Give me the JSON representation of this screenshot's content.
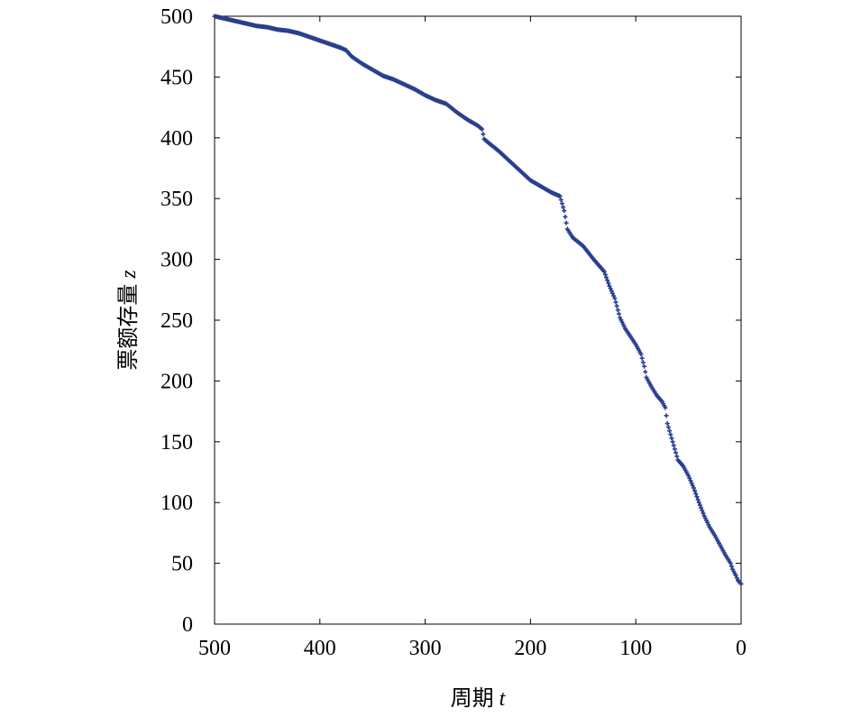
{
  "chart_data": {
    "type": "scatter",
    "title": "",
    "xlabel": "周期",
    "xlabel_var": "t",
    "ylabel": "票额存量",
    "ylabel_var": "z",
    "xlim": [
      500,
      0
    ],
    "ylim": [
      0,
      500
    ],
    "x_reversed": true,
    "xticks": [
      500,
      400,
      300,
      200,
      100,
      0
    ],
    "yticks": [
      0,
      50,
      100,
      150,
      200,
      250,
      300,
      350,
      400,
      450,
      500
    ],
    "grid": false,
    "marker_color": "#2b3f8f",
    "series": [
      {
        "x": [
          500,
          490,
          480,
          470,
          460,
          450,
          440,
          430,
          420,
          410,
          400,
          390,
          380,
          375,
          370,
          360,
          350,
          340,
          330,
          320,
          310,
          300,
          290,
          280,
          270,
          260,
          250,
          246,
          244,
          240,
          230,
          220,
          210,
          200,
          190,
          180,
          172,
          168,
          165,
          160,
          150,
          140,
          130,
          125,
          120,
          115,
          110,
          100,
          95,
          92,
          90,
          85,
          80,
          75,
          72,
          70,
          65,
          60,
          55,
          50,
          45,
          40,
          35,
          30,
          25,
          20,
          15,
          10,
          8,
          5,
          3,
          0
        ],
        "y": [
          500,
          498,
          496,
          494,
          492,
          491,
          489,
          488,
          486,
          483,
          480,
          477,
          474,
          472,
          467,
          461,
          456,
          451,
          448,
          444,
          440,
          435,
          431,
          428,
          421,
          415,
          410,
          407,
          399,
          396,
          389,
          381,
          373,
          365,
          360,
          355,
          352,
          340,
          325,
          318,
          311,
          300,
          290,
          278,
          268,
          252,
          243,
          230,
          222,
          212,
          203,
          195,
          188,
          183,
          178,
          165,
          150,
          135,
          130,
          122,
          112,
          100,
          89,
          80,
          73,
          65,
          57,
          50,
          45,
          40,
          36,
          33
        ]
      }
    ]
  }
}
